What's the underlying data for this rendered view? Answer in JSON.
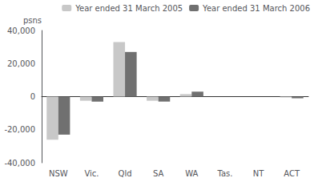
{
  "chart_data": {
    "type": "bar",
    "categories": [
      "NSW",
      "Vic.",
      "Qld",
      "SA",
      "WA",
      "Tas.",
      "NT",
      "ACT"
    ],
    "series": [
      {
        "name": "Year ended 31 March 2005",
        "color": "#c8c8c8",
        "values": [
          -26000,
          -2500,
          33000,
          -2500,
          1500,
          0,
          0,
          -500
        ]
      },
      {
        "name": "Year ended 31 March 2006",
        "color": "#707070",
        "values": [
          -23000,
          -3000,
          27000,
          -3000,
          3000,
          0,
          0,
          -1000
        ]
      }
    ],
    "ylabel": "psns",
    "ylim": [
      -40000,
      40000
    ],
    "yticks": [
      -40000,
      -20000,
      0,
      20000,
      40000
    ],
    "grid": false,
    "legend": "upper right"
  }
}
